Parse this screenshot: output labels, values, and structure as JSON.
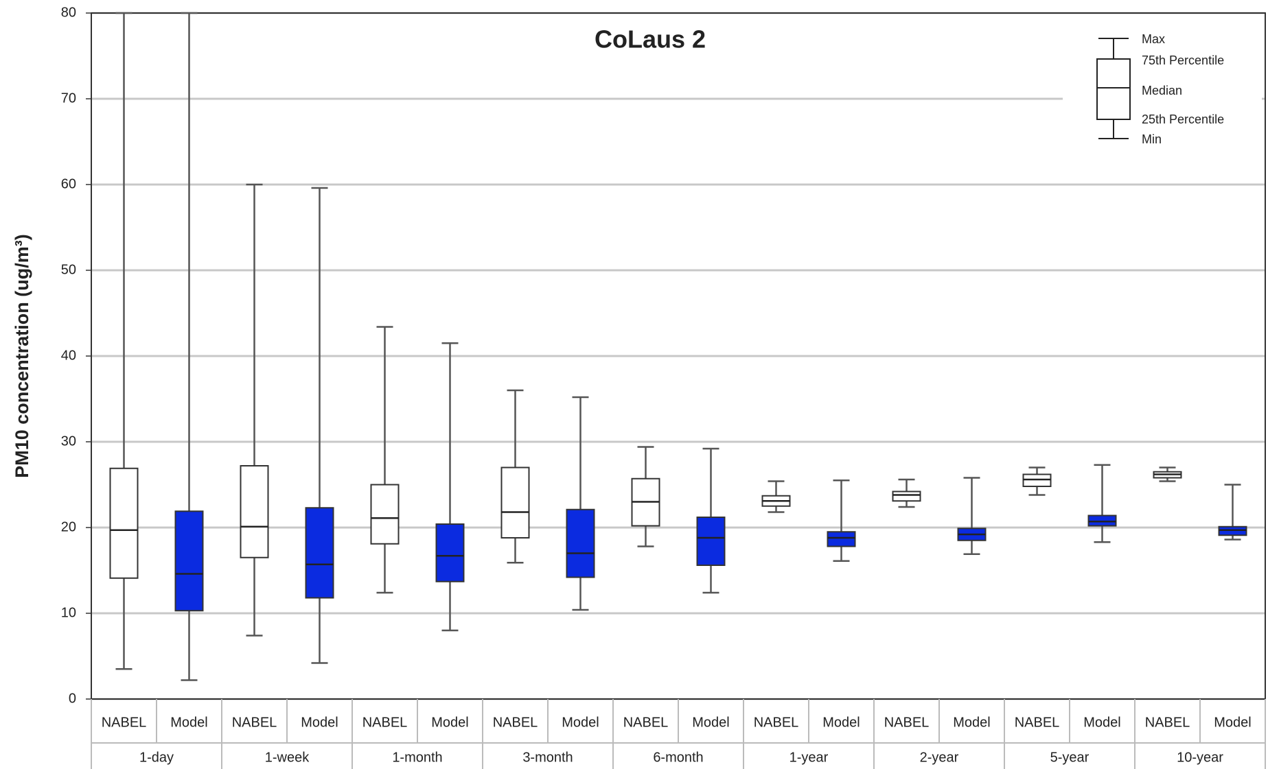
{
  "chart_data": {
    "type": "box",
    "title": "CoLaus 2",
    "y_label": "PM10 concentration (ug/m³)",
    "groups": [
      "1-day",
      "1-week",
      "1-month",
      "3-month",
      "6-month",
      "1-year",
      "2-year",
      "5-year",
      "10-year"
    ],
    "series": [
      {
        "name": "NABEL",
        "color": "#ffffff",
        "min": [
          3.5,
          7.4,
          12.4,
          15.9,
          17.8,
          21.8,
          22.4,
          23.8,
          25.4
        ],
        "q1": [
          14.1,
          16.5,
          18.1,
          18.8,
          20.2,
          22.5,
          23.1,
          24.8,
          25.8
        ],
        "median": [
          19.7,
          20.1,
          21.1,
          21.8,
          23.0,
          23.1,
          23.8,
          25.6,
          26.2
        ],
        "q3": [
          26.9,
          27.2,
          25.0,
          27.0,
          25.7,
          23.7,
          24.2,
          26.2,
          26.5
        ],
        "max": [
          80,
          60.0,
          43.4,
          36.0,
          29.4,
          25.4,
          25.6,
          27.0,
          27.0
        ]
      },
      {
        "name": "Model",
        "color": "#0b2be0",
        "min": [
          2.2,
          4.2,
          8.0,
          10.4,
          12.4,
          16.1,
          16.9,
          18.3,
          18.6
        ],
        "q1": [
          10.3,
          11.8,
          13.7,
          14.2,
          15.6,
          17.8,
          18.5,
          20.2,
          19.1
        ],
        "median": [
          14.6,
          15.7,
          16.7,
          17.0,
          18.8,
          18.8,
          19.2,
          20.7,
          19.7
        ],
        "q3": [
          21.9,
          22.3,
          20.4,
          22.1,
          21.2,
          19.5,
          19.9,
          21.4,
          20.1
        ],
        "max": [
          80,
          59.6,
          41.5,
          35.2,
          29.2,
          25.5,
          25.8,
          27.3,
          25.0
        ]
      }
    ],
    "legend_labels": {
      "max": "Max",
      "q3": "75th Percentile",
      "median": "Median",
      "q1": "25th Percentile",
      "min": "Min"
    },
    "ylim": [
      0,
      80
    ],
    "yticks": [
      0,
      10,
      20,
      30,
      40,
      50,
      60,
      70,
      80
    ],
    "grid": true
  }
}
